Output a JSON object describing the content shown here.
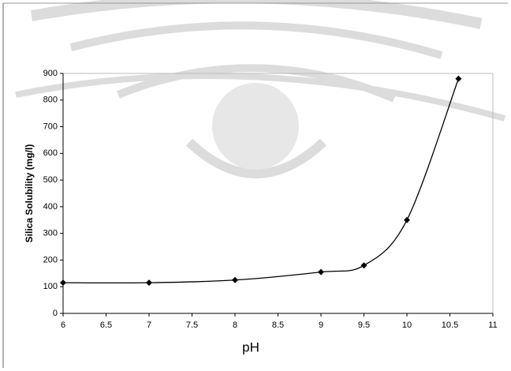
{
  "chart_data": {
    "type": "line",
    "x_label": "pH",
    "y_label": "Silica Solubility (mg/l)",
    "x": [
      6,
      7,
      8,
      9,
      9.5,
      10,
      10.6
    ],
    "series": [
      {
        "color": "#000000",
        "values": [
          115,
          115,
          125,
          155,
          180,
          350,
          880
        ]
      }
    ],
    "xlim": [
      6,
      11
    ],
    "xticks": [
      6,
      6.5,
      7,
      7.5,
      8,
      8.5,
      9,
      9.5,
      10,
      10.5,
      11
    ],
    "ylim": [
      0,
      900
    ],
    "yticks": [
      0,
      100,
      200,
      300,
      400,
      500,
      600,
      700,
      800,
      900
    ],
    "smooth": true,
    "markers": "diamond"
  }
}
